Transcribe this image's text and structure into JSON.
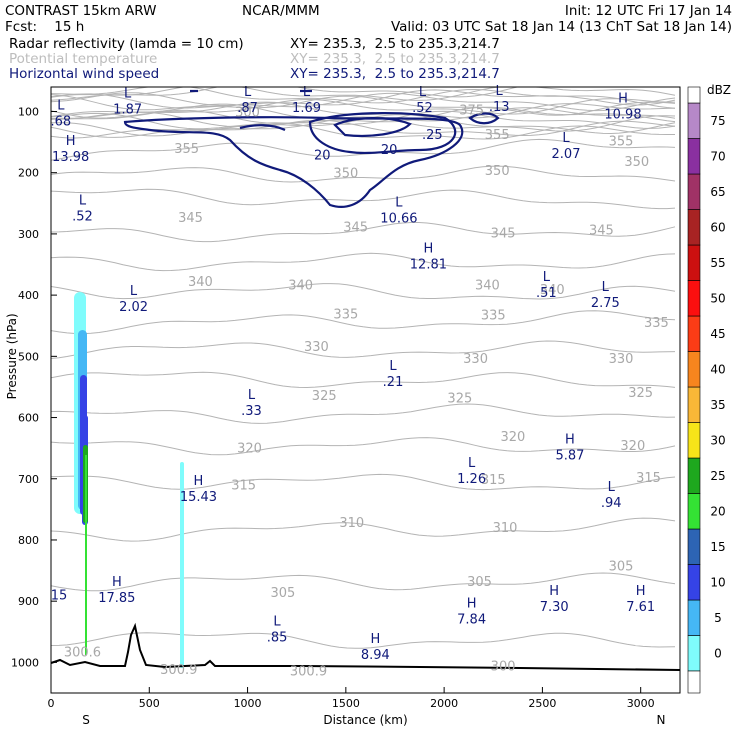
{
  "header": {
    "left1": "CONTRAST 15km ARW",
    "center1": "NCAR/MMM",
    "right1": "Init: 12 UTC Fri 17 Jan 14",
    "left2": "Fcst:    15 h",
    "right2": "Valid: 03 UTC Sat 18 Jan 14 (13 ChT Sat 18 Jan 14)",
    "fields": [
      {
        "label": "Radar reflectivity (lamda = 10 cm)",
        "xy": "XY= 235.3,  2.5 to 235.3,214.7"
      },
      {
        "label": "Potential temperature",
        "xy": "XY= 235.3,  2.5 to 235.3,214.7"
      },
      {
        "label": "Horizontal wind speed",
        "xy": "XY= 235.3,  2.5 to 235.3,214.7"
      }
    ]
  },
  "chart_data": {
    "type": "cross-section",
    "xlabel": "Distance (km)",
    "ylabel": "Pressure (hPa)",
    "xlim": [
      0,
      3200
    ],
    "ylim": [
      1050,
      60
    ],
    "x_ticks": [
      0,
      500,
      1000,
      1500,
      2000,
      2500,
      3000
    ],
    "y_ticks": [
      100,
      200,
      300,
      400,
      500,
      600,
      700,
      800,
      900,
      1000
    ],
    "end_labels": {
      "left": "S",
      "right": "N"
    },
    "colorbar": {
      "unit": "dBZ",
      "levels": [
        0,
        5,
        10,
        15,
        20,
        25,
        30,
        35,
        40,
        45,
        50,
        55,
        60,
        65,
        70,
        75
      ],
      "colors": [
        "#7ffcfc",
        "#45b7f5",
        "#3543e6",
        "#2d64b4",
        "#34e234",
        "#1ea81e",
        "#f7e419",
        "#f9b737",
        "#f7851e",
        "#fb3c16",
        "#fb0f0f",
        "#cc1010",
        "#a82323",
        "#a03266",
        "#8a30a0",
        "#b688c8"
      ]
    },
    "theta_labels": [
      {
        "text": "375",
        "x": 2140,
        "p": 97
      },
      {
        "text": "355",
        "x": 690,
        "p": 160
      },
      {
        "text": "355",
        "x": 2270,
        "p": 137
      },
      {
        "text": "355",
        "x": 2900,
        "p": 147
      },
      {
        "text": "350",
        "x": 1500,
        "p": 200
      },
      {
        "text": "350",
        "x": 2270,
        "p": 196
      },
      {
        "text": "350",
        "x": 2980,
        "p": 181
      },
      {
        "text": "345",
        "x": 710,
        "p": 272
      },
      {
        "text": "345",
        "x": 1550,
        "p": 288
      },
      {
        "text": "345",
        "x": 2300,
        "p": 298
      },
      {
        "text": "345",
        "x": 2800,
        "p": 293
      },
      {
        "text": "340",
        "x": 760,
        "p": 377
      },
      {
        "text": "340",
        "x": 1270,
        "p": 383
      },
      {
        "text": "340",
        "x": 2220,
        "p": 383
      },
      {
        "text": "340",
        "x": 2550,
        "p": 390
      },
      {
        "text": "335",
        "x": 1500,
        "p": 430
      },
      {
        "text": "335",
        "x": 2250,
        "p": 432
      },
      {
        "text": "335",
        "x": 3080,
        "p": 444
      },
      {
        "text": "330",
        "x": 1350,
        "p": 483
      },
      {
        "text": "330",
        "x": 2160,
        "p": 503
      },
      {
        "text": "330",
        "x": 2900,
        "p": 503
      },
      {
        "text": "325",
        "x": 1390,
        "p": 563
      },
      {
        "text": "325",
        "x": 2080,
        "p": 567
      },
      {
        "text": "325",
        "x": 3000,
        "p": 558
      },
      {
        "text": "320",
        "x": 1010,
        "p": 649
      },
      {
        "text": "320",
        "x": 2350,
        "p": 630
      },
      {
        "text": "320",
        "x": 2960,
        "p": 645
      },
      {
        "text": "315",
        "x": 980,
        "p": 709
      },
      {
        "text": "315",
        "x": 2250,
        "p": 700
      },
      {
        "text": "315",
        "x": 3040,
        "p": 697
      },
      {
        "text": "310",
        "x": 1530,
        "p": 771
      },
      {
        "text": "310",
        "x": 2310,
        "p": 779
      },
      {
        "text": "305",
        "x": 1180,
        "p": 885
      },
      {
        "text": "305",
        "x": 2180,
        "p": 867
      },
      {
        "text": "305",
        "x": 2900,
        "p": 842
      },
      {
        "text": "300.6",
        "x": 160,
        "p": 982
      },
      {
        "text": "300.9",
        "x": 650,
        "p": 1011
      },
      {
        "text": "300.9",
        "x": 1310,
        "p": 1013
      },
      {
        "text": "300",
        "x": 2300,
        "p": 1005
      },
      {
        "text": "300",
        "x": 1000,
        "p": 100
      }
    ],
    "wind_contour_labels": [
      {
        "text": "20",
        "x": 1380,
        "p": 170
      },
      {
        "text": "20",
        "x": 1720,
        "p": 161
      },
      {
        "text": ".25",
        "x": 1940,
        "p": 137
      }
    ],
    "extrema": [
      {
        "type": "L",
        "value": "1.87",
        "x": 390,
        "p": 82
      },
      {
        "type": "L",
        "value": ".87",
        "x": 1000,
        "p": 80
      },
      {
        "type": "L",
        "value": "1.69",
        "x": 1300,
        "p": 80
      },
      {
        "type": "L",
        "value": ".52",
        "x": 1890,
        "p": 80
      },
      {
        "type": "L",
        "value": ".13",
        "x": 2280,
        "p": 78
      },
      {
        "type": "H",
        "value": "10.98",
        "x": 2910,
        "p": 90
      },
      {
        "type": "L",
        "value": ".68",
        "x": 50,
        "p": 102
      },
      {
        "type": "H",
        "value": "13.98",
        "x": 100,
        "p": 160
      },
      {
        "type": "L",
        "value": "2.07",
        "x": 2620,
        "p": 155
      },
      {
        "type": "L",
        "value": ".52",
        "x": 160,
        "p": 257
      },
      {
        "type": "L",
        "value": "10.66",
        "x": 1770,
        "p": 260
      },
      {
        "type": "H",
        "value": "12.81",
        "x": 1920,
        "p": 335
      },
      {
        "type": "L",
        "value": ".51",
        "x": 2520,
        "p": 382
      },
      {
        "type": "L",
        "value": "2.75",
        "x": 2820,
        "p": 398
      },
      {
        "type": "L",
        "value": "2.02",
        "x": 420,
        "p": 405
      },
      {
        "type": "L",
        "value": ".21",
        "x": 1740,
        "p": 527
      },
      {
        "type": "L",
        "value": ".33",
        "x": 1020,
        "p": 575
      },
      {
        "type": "H",
        "value": "5.87",
        "x": 2640,
        "p": 647
      },
      {
        "type": "L",
        "value": "1.26",
        "x": 2140,
        "p": 686
      },
      {
        "type": "L",
        "value": ".94",
        "x": 2850,
        "p": 725
      },
      {
        "type": "H",
        "value": "15.43",
        "x": 750,
        "p": 715
      },
      {
        "type": "H",
        "value": "17.85",
        "x": 335,
        "p": 880
      },
      {
        "type": "H",
        "value": "7.84",
        "x": 2140,
        "p": 915
      },
      {
        "type": "H",
        "value": "7.30",
        "x": 2560,
        "p": 895
      },
      {
        "type": "H",
        "value": "7.61",
        "x": 3000,
        "p": 895
      },
      {
        "type": "L",
        "value": ".85",
        "x": 1150,
        "p": 945
      },
      {
        "type": "H",
        "value": "8.94",
        "x": 1650,
        "p": 973
      }
    ],
    "edge_labels": [
      {
        "text": "15",
        "x": 30,
        "p": 889
      }
    ]
  }
}
